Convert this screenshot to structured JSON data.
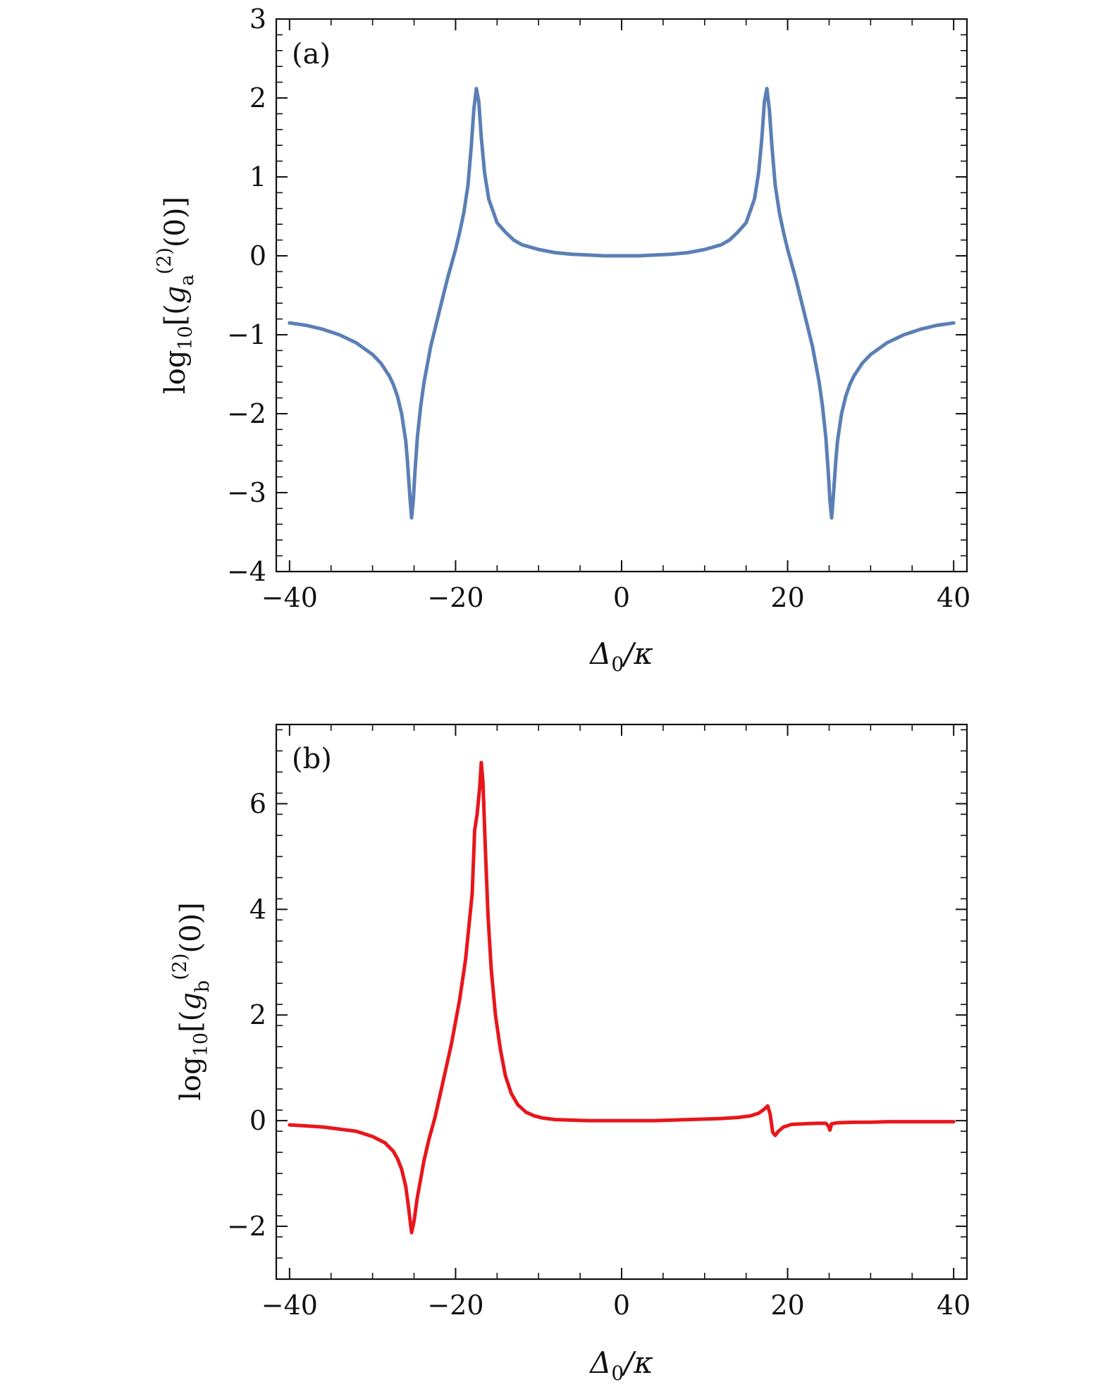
{
  "chart_data": [
    {
      "type": "line",
      "panel_label": "(a)",
      "xlabel": "Δ0/κ",
      "ylabel": "log10[(g_a^(2)(0)]",
      "xlim": [
        -40,
        40
      ],
      "ylim": [
        -4,
        3
      ],
      "x_ticks": [
        -40,
        -20,
        0,
        20,
        40
      ],
      "x_tick_labels": [
        "−40",
        "−20",
        "0",
        "20",
        "40"
      ],
      "y_ticks": [
        -4,
        -3,
        -2,
        -1,
        0,
        1,
        2,
        3
      ],
      "y_tick_labels": [
        "−4",
        "−3",
        "−2",
        "−1",
        "0",
        "1",
        "2",
        "3"
      ],
      "grid": false,
      "color": "#5b7fb5",
      "series": [
        {
          "x": [
            -40,
            -38,
            -36,
            -34,
            -32,
            -30,
            -29,
            -28,
            -27.5,
            -27,
            -26.5,
            -26,
            -25.8,
            -25.5,
            -25.3,
            -25.1,
            -24.9,
            -24.6,
            -24.2,
            -23.8,
            -23,
            -22,
            -21,
            -20,
            -19.5,
            -19,
            -18.5,
            -18.1,
            -17.8,
            -17.5,
            -17.2,
            -16.9,
            -16.5,
            -16,
            -15,
            -14,
            -13,
            -12,
            -10,
            -8,
            -6,
            -4,
            -2,
            0,
            2,
            4,
            6,
            8,
            10,
            12,
            13,
            14,
            15,
            16,
            16.5,
            16.9,
            17.2,
            17.5,
            17.8,
            18.1,
            18.5,
            19,
            19.5,
            20,
            21,
            22,
            23,
            23.8,
            24.2,
            24.6,
            24.9,
            25.1,
            25.3,
            25.5,
            25.8,
            26,
            26.5,
            27,
            27.5,
            28,
            29,
            30,
            32,
            34,
            36,
            38,
            40
          ],
          "y": [
            -0.85,
            -0.88,
            -0.93,
            -1.0,
            -1.1,
            -1.25,
            -1.36,
            -1.52,
            -1.63,
            -1.78,
            -2.0,
            -2.35,
            -2.6,
            -3.05,
            -3.32,
            -3.1,
            -2.75,
            -2.3,
            -1.9,
            -1.6,
            -1.15,
            -0.72,
            -0.3,
            0.08,
            0.3,
            0.55,
            0.9,
            1.4,
            1.85,
            2.12,
            1.95,
            1.5,
            1.05,
            0.72,
            0.42,
            0.3,
            0.2,
            0.14,
            0.08,
            0.04,
            0.02,
            0.01,
            0.0,
            0.0,
            0.0,
            0.01,
            0.02,
            0.04,
            0.08,
            0.14,
            0.2,
            0.3,
            0.42,
            0.72,
            1.05,
            1.5,
            1.95,
            2.12,
            1.85,
            1.4,
            0.9,
            0.55,
            0.3,
            0.08,
            -0.3,
            -0.72,
            -1.15,
            -1.6,
            -1.9,
            -2.3,
            -2.75,
            -3.1,
            -3.32,
            -3.05,
            -2.6,
            -2.35,
            -2.0,
            -1.78,
            -1.63,
            -1.52,
            -1.36,
            -1.25,
            -1.1,
            -1.0,
            -0.93,
            -0.88,
            -0.85
          ]
        }
      ]
    },
    {
      "type": "line",
      "panel_label": "(b)",
      "xlabel": "Δ0/κ",
      "ylabel": "log10[(g_b^(2)(0)]",
      "xlim": [
        -40,
        40
      ],
      "ylim": [
        -3,
        7.5
      ],
      "x_ticks": [
        -40,
        -20,
        0,
        20,
        40
      ],
      "x_tick_labels": [
        "−40",
        "−20",
        "0",
        "20",
        "40"
      ],
      "y_ticks": [
        -2,
        0,
        2,
        4,
        6
      ],
      "y_tick_labels": [
        "−2",
        "0",
        "2",
        "4",
        "6"
      ],
      "grid": false,
      "color": "#e8161b",
      "series": [
        {
          "x": [
            -40,
            -36,
            -32,
            -30,
            -28.5,
            -27.5,
            -27,
            -26.5,
            -26,
            -25.7,
            -25.3,
            -25,
            -24.6,
            -24.2,
            -23.8,
            -23.2,
            -22.5,
            -21.5,
            -20.5,
            -19.5,
            -18.8,
            -18,
            -17.7,
            -17.4,
            -17.1,
            -16.9,
            -16.7,
            -16.4,
            -16.1,
            -15.7,
            -15.2,
            -14.6,
            -14,
            -13.3,
            -12.5,
            -11.5,
            -10.5,
            -9.5,
            -8,
            -6,
            -4,
            -2,
            0,
            2,
            4,
            6,
            8,
            10,
            12,
            14,
            15.5,
            16.5,
            17.2,
            17.6,
            17.9,
            18.2,
            18.5,
            18.9,
            19.5,
            20.5,
            22,
            23.5,
            24.6,
            24.9,
            25.1,
            25.3,
            26,
            28,
            30,
            32,
            36,
            40
          ],
          "y": [
            -0.08,
            -0.12,
            -0.2,
            -0.3,
            -0.42,
            -0.58,
            -0.72,
            -0.92,
            -1.25,
            -1.6,
            -2.12,
            -1.9,
            -1.45,
            -1.1,
            -0.75,
            -0.35,
            0.05,
            0.75,
            1.45,
            2.3,
            3.05,
            4.3,
            5.5,
            5.8,
            6.3,
            6.78,
            6.4,
            5.1,
            3.9,
            2.85,
            2.0,
            1.35,
            0.85,
            0.52,
            0.3,
            0.16,
            0.09,
            0.05,
            0.02,
            0.01,
            0.0,
            0.0,
            0.0,
            0.0,
            0.0,
            0.01,
            0.02,
            0.03,
            0.04,
            0.06,
            0.09,
            0.14,
            0.22,
            0.28,
            0.12,
            -0.22,
            -0.28,
            -0.2,
            -0.12,
            -0.07,
            -0.06,
            -0.05,
            -0.05,
            -0.1,
            -0.18,
            -0.06,
            -0.04,
            -0.03,
            -0.03,
            -0.02,
            -0.02,
            -0.02
          ]
        }
      ]
    }
  ]
}
